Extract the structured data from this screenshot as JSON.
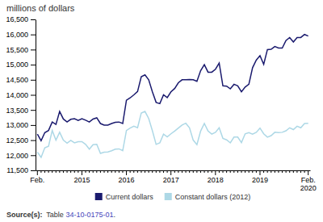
{
  "chart_data": {
    "type": "line",
    "title": "millions of dollars",
    "categories": [
      "Feb.",
      null,
      null,
      null,
      null,
      null,
      null,
      null,
      null,
      null,
      null,
      null,
      "2015",
      null,
      null,
      null,
      null,
      null,
      null,
      null,
      null,
      null,
      null,
      null,
      "2016",
      null,
      null,
      null,
      null,
      null,
      null,
      null,
      null,
      null,
      null,
      null,
      "2017",
      null,
      null,
      null,
      null,
      null,
      null,
      null,
      null,
      null,
      null,
      null,
      "2018",
      null,
      null,
      null,
      null,
      null,
      null,
      null,
      null,
      null,
      null,
      null,
      "2019",
      null,
      null,
      null,
      null,
      null,
      null,
      null,
      null,
      null,
      null,
      null,
      null,
      "Feb.\n2020"
    ],
    "series": [
      {
        "name": "Current dollars",
        "color": "#1a1a6e",
        "values": [
          12700,
          12480,
          12750,
          12820,
          13100,
          13020,
          13450,
          13200,
          13100,
          13190,
          13210,
          13150,
          13210,
          13160,
          13100,
          13200,
          13240,
          13050,
          13000,
          13000,
          13050,
          13090,
          13100,
          13050,
          13820,
          13900,
          14000,
          14110,
          14600,
          14660,
          14500,
          14100,
          13750,
          13710,
          14000,
          13910,
          14100,
          14210,
          14400,
          14500,
          14500,
          14510,
          14500,
          14450,
          14800,
          15000,
          14750,
          14750,
          14850,
          15050,
          14300,
          14290,
          14200,
          14350,
          14300,
          14100,
          14260,
          14350,
          14900,
          15150,
          15300,
          15010,
          15500,
          15510,
          15600,
          15550,
          15550,
          15800,
          15900,
          15750,
          15900,
          15900,
          16000,
          15950
        ]
      },
      {
        "name": "Constant dollars (2012)",
        "color": "#add8e6",
        "values": [
          12100,
          11930,
          12250,
          12300,
          12820,
          12500,
          12760,
          12500,
          12400,
          12490,
          12410,
          12450,
          12450,
          12360,
          12200,
          12350,
          12360,
          12060,
          12100,
          12110,
          12150,
          12200,
          12210,
          12150,
          12820,
          12900,
          12960,
          12910,
          13400,
          13450,
          13220,
          12810,
          12360,
          12410,
          12700,
          12610,
          12710,
          12800,
          12900,
          13000,
          13060,
          12910,
          12500,
          12350,
          12800,
          13050,
          12800,
          12700,
          12760,
          12910,
          12560,
          12510,
          12410,
          12600,
          12600,
          12420,
          12710,
          12750,
          12700,
          12760,
          12900,
          12710,
          12600,
          12650,
          12760,
          12750,
          12760,
          12810,
          12910,
          12850,
          12960,
          12910,
          13050,
          13060
        ]
      }
    ],
    "ylim": [
      11500,
      16500
    ],
    "yticks": [
      {
        "value": 11500,
        "label": "11,500"
      },
      {
        "value": 12000,
        "label": "12,000"
      },
      {
        "value": 12500,
        "label": "12,500"
      },
      {
        "value": 13000,
        "label": "13,000"
      },
      {
        "value": 13500,
        "label": "13,500"
      },
      {
        "value": 14000,
        "label": "14,000"
      },
      {
        "value": 14500,
        "label": "14,500"
      },
      {
        "value": 15000,
        "label": "15,000"
      },
      {
        "value": 15500,
        "label": "15,500"
      },
      {
        "value": 16000,
        "label": "16,000"
      },
      {
        "value": 16500,
        "label": "16,500"
      }
    ],
    "grid": false,
    "legend": "bottom",
    "annotations": [
      "Source(s):",
      "  Table ",
      "34-10-0175-01",
      "."
    ]
  }
}
